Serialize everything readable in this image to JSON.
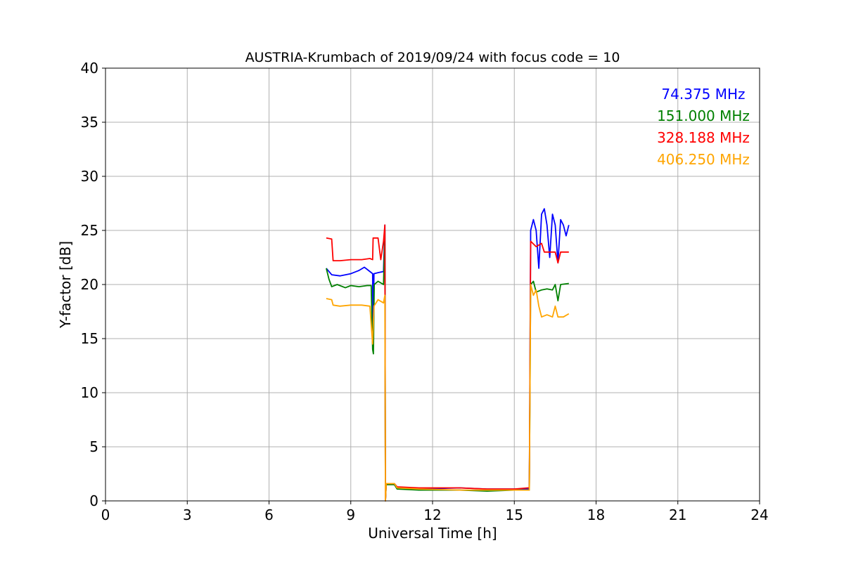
{
  "chart_data": {
    "type": "line",
    "title": "AUSTRIA-Krumbach of 2019/09/24 with focus code = 10",
    "xlabel": "Universal Time [h]",
    "ylabel": "Y-factor [dB]",
    "xlim": [
      0,
      24
    ],
    "ylim": [
      0,
      40
    ],
    "xticks": [
      0,
      3,
      6,
      9,
      12,
      15,
      18,
      21,
      24
    ],
    "yticks": [
      0,
      5,
      10,
      15,
      20,
      25,
      30,
      35,
      40
    ],
    "grid": true,
    "legend_position": "top-right",
    "series": [
      {
        "name": "74.375 MHz",
        "color": "#0000ff",
        "points": [
          [
            8.1,
            21.5
          ],
          [
            8.3,
            20.9
          ],
          [
            8.6,
            20.8
          ],
          [
            9.0,
            21.0
          ],
          [
            9.3,
            21.3
          ],
          [
            9.5,
            21.6
          ],
          [
            9.7,
            21.2
          ],
          [
            9.8,
            21.0
          ],
          [
            9.82,
            14.0
          ],
          [
            9.85,
            21.0
          ],
          [
            10.0,
            21.1
          ],
          [
            10.2,
            21.2
          ],
          [
            10.25,
            25.5
          ],
          [
            10.27,
            0.0
          ],
          [
            10.3,
            1.6
          ],
          [
            10.6,
            1.5
          ],
          [
            10.7,
            1.2
          ],
          [
            11.5,
            1.1
          ],
          [
            13.0,
            1.2
          ],
          [
            14.0,
            1.1
          ],
          [
            15.0,
            1.1
          ],
          [
            15.5,
            1.1
          ],
          [
            15.55,
            1.1
          ],
          [
            15.6,
            25.0
          ],
          [
            15.7,
            26.0
          ],
          [
            15.8,
            25.0
          ],
          [
            15.9,
            21.5
          ],
          [
            16.0,
            26.5
          ],
          [
            16.1,
            27.0
          ],
          [
            16.2,
            25.5
          ],
          [
            16.3,
            22.5
          ],
          [
            16.4,
            26.5
          ],
          [
            16.5,
            25.5
          ],
          [
            16.6,
            22.0
          ],
          [
            16.7,
            26.0
          ],
          [
            16.8,
            25.5
          ],
          [
            16.9,
            24.5
          ],
          [
            17.0,
            25.5
          ]
        ]
      },
      {
        "name": "151.000 MHz",
        "color": "#008000",
        "points": [
          [
            8.1,
            21.5
          ],
          [
            8.2,
            20.5
          ],
          [
            8.3,
            19.8
          ],
          [
            8.5,
            20.0
          ],
          [
            8.8,
            19.7
          ],
          [
            9.0,
            19.9
          ],
          [
            9.3,
            19.8
          ],
          [
            9.6,
            19.9
          ],
          [
            9.75,
            19.9
          ],
          [
            9.8,
            14.0
          ],
          [
            9.83,
            13.6
          ],
          [
            9.86,
            20.0
          ],
          [
            10.0,
            20.3
          ],
          [
            10.2,
            20.0
          ],
          [
            10.25,
            25.0
          ],
          [
            10.27,
            0.0
          ],
          [
            10.3,
            1.5
          ],
          [
            10.6,
            1.5
          ],
          [
            10.7,
            1.1
          ],
          [
            11.5,
            1.0
          ],
          [
            13.0,
            1.0
          ],
          [
            14.0,
            0.9
          ],
          [
            15.0,
            1.0
          ],
          [
            15.5,
            1.0
          ],
          [
            15.55,
            1.0
          ],
          [
            15.6,
            20.0
          ],
          [
            15.7,
            20.3
          ],
          [
            15.8,
            19.3
          ],
          [
            16.0,
            19.5
          ],
          [
            16.2,
            19.6
          ],
          [
            16.4,
            19.5
          ],
          [
            16.5,
            20.0
          ],
          [
            16.6,
            18.5
          ],
          [
            16.7,
            20.0
          ],
          [
            17.0,
            20.1
          ]
        ]
      },
      {
        "name": "328.188 MHz",
        "color": "#ff0000",
        "points": [
          [
            8.1,
            24.3
          ],
          [
            8.3,
            24.2
          ],
          [
            8.35,
            22.2
          ],
          [
            8.6,
            22.2
          ],
          [
            9.0,
            22.3
          ],
          [
            9.4,
            22.3
          ],
          [
            9.7,
            22.4
          ],
          [
            9.8,
            22.3
          ],
          [
            9.82,
            24.3
          ],
          [
            10.0,
            24.3
          ],
          [
            10.1,
            22.3
          ],
          [
            10.2,
            24.0
          ],
          [
            10.25,
            25.5
          ],
          [
            10.27,
            0.0
          ],
          [
            10.3,
            1.6
          ],
          [
            10.6,
            1.6
          ],
          [
            10.7,
            1.3
          ],
          [
            11.5,
            1.2
          ],
          [
            13.0,
            1.2
          ],
          [
            14.0,
            1.1
          ],
          [
            15.0,
            1.1
          ],
          [
            15.5,
            1.2
          ],
          [
            15.55,
            1.2
          ],
          [
            15.6,
            24.0
          ],
          [
            15.8,
            23.5
          ],
          [
            16.0,
            23.8
          ],
          [
            16.1,
            23.0
          ],
          [
            16.3,
            23.0
          ],
          [
            16.5,
            23.0
          ],
          [
            16.6,
            22.0
          ],
          [
            16.7,
            23.0
          ],
          [
            17.0,
            23.0
          ]
        ]
      },
      {
        "name": "406.250 MHz",
        "color": "#ffa500",
        "points": [
          [
            8.1,
            18.7
          ],
          [
            8.3,
            18.6
          ],
          [
            8.35,
            18.1
          ],
          [
            8.6,
            18.0
          ],
          [
            9.0,
            18.1
          ],
          [
            9.4,
            18.1
          ],
          [
            9.7,
            18.0
          ],
          [
            9.8,
            14.5
          ],
          [
            9.85,
            18.0
          ],
          [
            10.0,
            18.6
          ],
          [
            10.2,
            18.3
          ],
          [
            10.25,
            19.0
          ],
          [
            10.27,
            0.0
          ],
          [
            10.3,
            1.6
          ],
          [
            10.6,
            1.6
          ],
          [
            10.7,
            1.2
          ],
          [
            11.5,
            1.1
          ],
          [
            13.0,
            1.0
          ],
          [
            14.0,
            1.0
          ],
          [
            15.0,
            1.0
          ],
          [
            15.5,
            1.0
          ],
          [
            15.55,
            1.0
          ],
          [
            15.6,
            20.0
          ],
          [
            15.7,
            19.0
          ],
          [
            15.8,
            19.5
          ],
          [
            15.9,
            18.0
          ],
          [
            16.0,
            17.0
          ],
          [
            16.2,
            17.2
          ],
          [
            16.4,
            17.0
          ],
          [
            16.5,
            18.0
          ],
          [
            16.6,
            17.0
          ],
          [
            16.8,
            17.0
          ],
          [
            17.0,
            17.3
          ]
        ]
      }
    ]
  }
}
